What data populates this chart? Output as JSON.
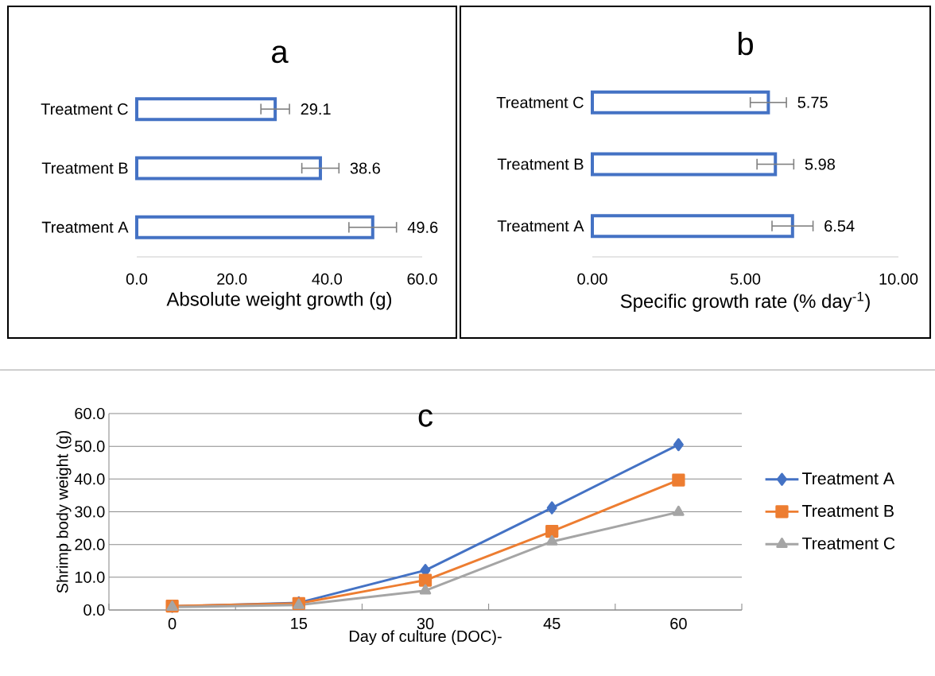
{
  "chart_data": [
    {
      "type": "bar",
      "orientation": "horizontal",
      "title": "a",
      "categories": [
        "Treatment C",
        "Treatment B",
        "Treatment A"
      ],
      "values": [
        29.1,
        38.6,
        49.6
      ],
      "errors": [
        3.0,
        3.9,
        5.0
      ],
      "color": "#4472c4",
      "xlim": [
        0,
        60
      ],
      "xticks": [
        {
          "value": 0,
          "label": "0.0"
        },
        {
          "value": 20,
          "label": "20.0"
        },
        {
          "value": 40,
          "label": "40.0"
        },
        {
          "value": 60,
          "label": "60.0"
        }
      ],
      "xlabel": "Absolute weight growth (g)",
      "data_labels": true,
      "grid": false,
      "legend": false
    },
    {
      "type": "bar",
      "orientation": "horizontal",
      "title": "b",
      "categories": [
        "Treatment C",
        "Treatment B",
        "Treatment A"
      ],
      "values": [
        5.75,
        5.98,
        6.54
      ],
      "errors": [
        0.59,
        0.6,
        0.67
      ],
      "color": "#4472c4",
      "xlim": [
        0,
        10
      ],
      "xticks": [
        {
          "value": 0,
          "label": "0.00"
        },
        {
          "value": 5,
          "label": "5.00"
        },
        {
          "value": 10,
          "label": "10.00"
        }
      ],
      "xlabel": "Specific growth rate (% day$^{-1}$)",
      "data_labels": true,
      "grid": false,
      "legend": false
    },
    {
      "type": "line",
      "title": "c",
      "categories": [
        "0",
        "15",
        "30",
        "45",
        "60"
      ],
      "series": [
        {
          "name": "Treatment A",
          "color": "#4472c4",
          "marker": "diamond",
          "values": [
            1.1,
            2.2,
            12.1,
            31.2,
            50.5
          ]
        },
        {
          "name": "Treatment B",
          "color": "#ed7d31",
          "marker": "square",
          "values": [
            1.2,
            2.0,
            9.1,
            24.0,
            39.7
          ]
        },
        {
          "name": "Treatment C",
          "color": "#a5a5a5",
          "marker": "triangle",
          "values": [
            0.9,
            1.5,
            5.9,
            20.9,
            29.9
          ]
        }
      ],
      "ylim": [
        0,
        60
      ],
      "yticks": [
        {
          "value": 0,
          "label": "0.0"
        },
        {
          "value": 10,
          "label": "10.0"
        },
        {
          "value": 20,
          "label": "20.0"
        },
        {
          "value": 30,
          "label": "30.0"
        },
        {
          "value": 40,
          "label": "40.0"
        },
        {
          "value": 50,
          "label": "50.0"
        },
        {
          "value": 60,
          "label": "60.0"
        }
      ],
      "xlabel": "Day of culture (DOC)-",
      "ylabel": "Shrimp body weight (g)",
      "grid": "y",
      "legend": "right",
      "line_style": "solid"
    }
  ]
}
